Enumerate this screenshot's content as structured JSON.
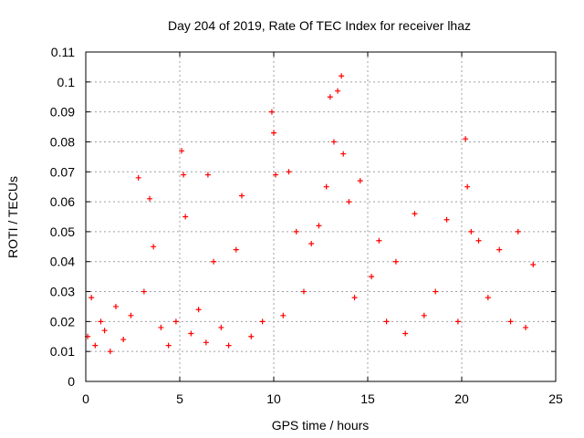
{
  "chart_data": {
    "type": "scatter",
    "title": "Day 204 of 2019, Rate Of TEC Index for receiver lhaz",
    "xlabel": "GPS time / hours",
    "ylabel": "ROTI / TECUs",
    "xlim": [
      0,
      25
    ],
    "ylim": [
      0,
      0.11
    ],
    "xticks": [
      0,
      5,
      10,
      15,
      20,
      25
    ],
    "xtick_labels": [
      "0",
      "5",
      "10",
      "15",
      "20",
      "25"
    ],
    "yticks": [
      0,
      0.01,
      0.02,
      0.03,
      0.04,
      0.05,
      0.06,
      0.07,
      0.08,
      0.09,
      0.1,
      0.11
    ],
    "ytick_labels": [
      "0",
      "0.01",
      "0.02",
      "0.03",
      "0.04",
      "0.05",
      "0.06",
      "0.07",
      "0.08",
      "0.09",
      "0.1",
      "0.11"
    ],
    "grid": true,
    "marker": "+",
    "color": "#ff0000",
    "series": [
      {
        "name": "ROTI",
        "x": [
          0.1,
          0.3,
          0.5,
          0.8,
          1.0,
          1.3,
          1.6,
          2.0,
          2.4,
          2.8,
          3.1,
          3.4,
          3.6,
          4.0,
          4.4,
          4.8,
          5.1,
          5.2,
          5.3,
          5.6,
          6.0,
          6.4,
          6.5,
          6.8,
          7.2,
          7.6,
          8.0,
          8.3,
          8.8,
          9.4,
          9.9,
          10.0,
          10.1,
          10.5,
          10.8,
          11.2,
          11.6,
          12.0,
          12.4,
          12.8,
          13.0,
          13.2,
          13.4,
          13.6,
          13.7,
          14.0,
          14.3,
          14.6,
          15.2,
          15.6,
          16.0,
          16.5,
          17.0,
          17.5,
          18.0,
          18.6,
          19.2,
          19.8,
          20.2,
          20.3,
          20.5,
          20.9,
          21.4,
          22.0,
          22.6,
          23.0,
          23.4,
          23.8
        ],
        "y": [
          0.015,
          0.028,
          0.012,
          0.02,
          0.017,
          0.01,
          0.025,
          0.014,
          0.022,
          0.068,
          0.03,
          0.061,
          0.045,
          0.018,
          0.012,
          0.02,
          0.077,
          0.069,
          0.055,
          0.016,
          0.024,
          0.013,
          0.069,
          0.04,
          0.018,
          0.012,
          0.044,
          0.062,
          0.015,
          0.02,
          0.09,
          0.083,
          0.069,
          0.022,
          0.07,
          0.05,
          0.03,
          0.046,
          0.052,
          0.065,
          0.095,
          0.08,
          0.097,
          0.102,
          0.076,
          0.06,
          0.028,
          0.067,
          0.035,
          0.047,
          0.02,
          0.04,
          0.016,
          0.056,
          0.022,
          0.03,
          0.054,
          0.02,
          0.081,
          0.065,
          0.05,
          0.047,
          0.028,
          0.044,
          0.02,
          0.05,
          0.018,
          0.039
        ]
      }
    ]
  }
}
